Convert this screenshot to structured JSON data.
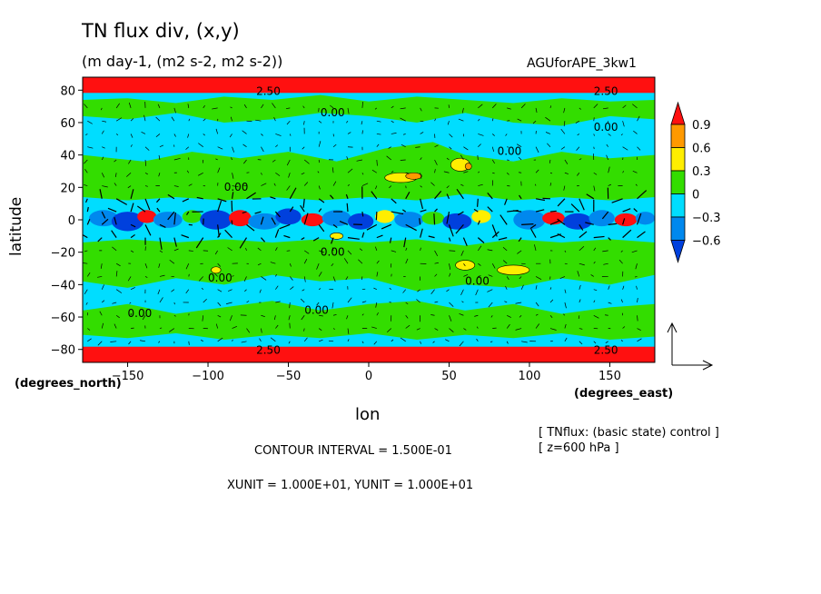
{
  "chart_data": {
    "type": "heatmap",
    "title": "TN flux div, (x,y)",
    "subtitle": "(m day-1, (m2 s-2, m2 s-2))",
    "run_label": "AGUforAPE_3kw1",
    "xlabel": "lon",
    "ylabel": "latitude",
    "x_unit_label": "(degrees_east)",
    "y_unit_label": "(degrees_north)",
    "xlim": [
      -178,
      178
    ],
    "ylim": [
      -88,
      88
    ],
    "x_ticks": [
      -150,
      -100,
      -50,
      0,
      50,
      100,
      150
    ],
    "x_tick_labels": [
      "−150",
      "−100",
      "−50",
      "0",
      "50",
      "100",
      "150"
    ],
    "y_ticks": [
      80,
      60,
      40,
      20,
      0,
      -20,
      -40,
      -60,
      -80
    ],
    "y_tick_labels": [
      "80",
      "60",
      "40",
      "20",
      "0",
      "−20",
      "−40",
      "−60",
      "−80"
    ],
    "colorbar": {
      "levels": [
        0.9,
        0.6,
        0.3,
        0,
        -0.3,
        -0.6
      ],
      "level_labels": [
        "0.9",
        "0.6",
        "0.3",
        "0",
        "−0.3",
        "−0.6"
      ],
      "colors": [
        "#ff1010",
        "#ff9900",
        "#ffee00",
        "#33dd00",
        "#00ddff",
        "#0088ee",
        "#0040dd"
      ]
    },
    "contour_labels": [
      "0.00",
      "2.50",
      "2.50",
      "2.50",
      "2.50"
    ],
    "contour_interval": "CONTOUR INTERVAL = 1.500E-01",
    "vector_units": "XUNIT = 1.000E+01, YUNIT = 1.000E+01",
    "notes": [
      "[ TNflux: (basic state) control ]",
      "[ z=600 hPa ]"
    ],
    "legend": "right",
    "grid": false
  }
}
